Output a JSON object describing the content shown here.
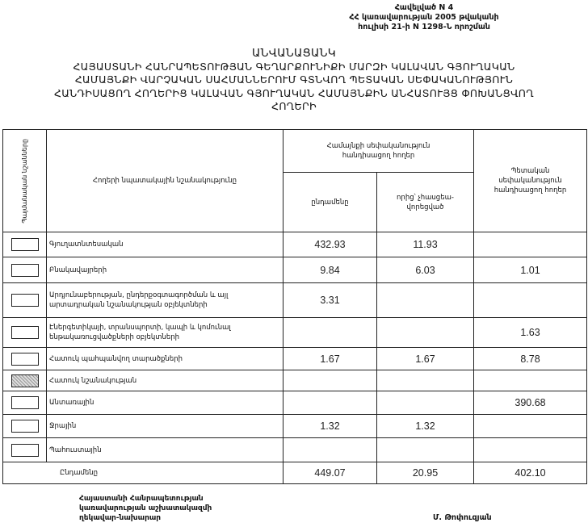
{
  "annex": {
    "lines": [
      "Հավելված N 4",
      "ՀՀ կառավարության 2005 թվականի",
      "հուլիսի 21-ի N 1298-Ն որոշման"
    ]
  },
  "title": {
    "lines": [
      "ԱՆՎԱՆԱՑԱՆԿ",
      "ՀԱՅԱՍՏԱՆԻ ՀԱՆՐԱՊԵՏՈՒԹՅԱՆ ԳԵՂԱՐՔՈՒՆԻՔԻ ՄԱՐԶԻ ԿԱԼԱՎԱՆ ԳՅՈՒՂԱԿԱՆ",
      "ՀԱՄԱՅՆՔԻ ՎԱՐՉԱԿԱՆ ՍԱՀՄԱՆՆԵՐՈՒՄ ԳՏՆՎՈՂ ՊԵՏԱԿԱՆ ՍԵՓԱԿԱՆՈՒԹՅՈՒՆ",
      "ՀԱՆԴԻՍԱՑՈՂ ՀՈՂԵՐԻՑ ԿԱԼԱՎԱՆ ԳՅՈՒՂԱԿԱՆ ՀԱՄԱՅՆՔԻՆ ԱՆՀԱՏՈՒՅՑ ՓՈԽԱՆՑՎՈՂ",
      "ՀՈՂԵՐԻ"
    ]
  },
  "table": {
    "headers": {
      "symbols": "Պայմանական նշանները",
      "purpose": "Հողերի նպատակային նշանակությունը",
      "community": "Համայնքի սեփականություն հանդիսացող հողեր",
      "community_total": "ընդամենը",
      "community_unassigned": "որից՝ չհասցեա-վորեցված",
      "state": "Պետական սեփականություն հանդիսացող հողեր"
    },
    "rows": [
      {
        "label": "Գյուղատնտեսական",
        "total": "432.93",
        "unassigned": "11.93",
        "state": "",
        "symbol": "empty"
      },
      {
        "label": "Բնակավայրերի",
        "total": "9.84",
        "unassigned": "6.03",
        "state": "1.01",
        "symbol": "empty"
      },
      {
        "label": "Արդյունաբերության, ընդերքօգտագործման և այլ արտադրական նշանակության օբյեկտների",
        "total": "3.31",
        "unassigned": "",
        "state": "",
        "symbol": "empty"
      },
      {
        "label": "Էներգետիկայի, տրանսպորտի, կապի և կոմունալ ենթակառուցվածքների օբյեկտների",
        "total": "",
        "unassigned": "",
        "state": "1.63",
        "symbol": "empty"
      },
      {
        "label": "Հատուկ պահպանվող տարածքների",
        "total": "1.67",
        "unassigned": "1.67",
        "state": "8.78",
        "symbol": "empty"
      },
      {
        "label": "Հատուկ նշանակության",
        "total": "",
        "unassigned": "",
        "state": "",
        "symbol": "dotted"
      },
      {
        "label": "Անտառային",
        "total": "",
        "unassigned": "",
        "state": "390.68",
        "symbol": "empty"
      },
      {
        "label": "Ջրային",
        "total": "1.32",
        "unassigned": "1.32",
        "state": "",
        "symbol": "empty"
      },
      {
        "label": "Պահուստային",
        "total": "",
        "unassigned": "",
        "state": "",
        "symbol": "empty"
      }
    ],
    "totals": {
      "label": "Ընդամենը",
      "total": "449.07",
      "unassigned": "20.95",
      "state": "402.10"
    }
  },
  "footer": {
    "position_lines": [
      "Հայաստանի Հանրապետության",
      "կառավարության աշխատակազմի",
      "ղեկավար-նախարար"
    ],
    "signatory": "Մ. Թոփուզյան"
  }
}
